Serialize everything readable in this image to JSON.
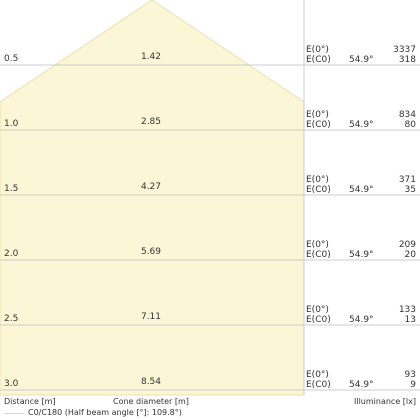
{
  "colors": {
    "cone_fill": "#fbf6d6",
    "cone_stroke": "#ece0b0",
    "grid": "#cccccc",
    "legend_line": "#f0d8a8"
  },
  "labels": {
    "e0": "E(0°)",
    "ec0": "E(C0)",
    "angle": "54.9°"
  },
  "footer": {
    "distance": "Distance [m]",
    "diameter": "Cone diameter [m]",
    "illuminance": "Illuminance [lx]",
    "legend": "C0/C180 (Half beam angle [°]: 109.8°)"
  },
  "chart_data": {
    "type": "table",
    "title": "",
    "half_beam_angle_deg": 54.9,
    "beam_angle_deg": 109.8,
    "rows": [
      {
        "distance": "0.5",
        "diameter": "1.42",
        "e0": "3337",
        "ec0": "318"
      },
      {
        "distance": "1.0",
        "diameter": "2.85",
        "e0": "834",
        "ec0": "80"
      },
      {
        "distance": "1.5",
        "diameter": "4.27",
        "e0": "371",
        "ec0": "35"
      },
      {
        "distance": "2.0",
        "diameter": "5.69",
        "e0": "209",
        "ec0": "20"
      },
      {
        "distance": "2.5",
        "diameter": "7.11",
        "e0": "133",
        "ec0": "13"
      },
      {
        "distance": "3.0",
        "diameter": "8.54",
        "e0": "93",
        "ec0": "9"
      }
    ]
  }
}
